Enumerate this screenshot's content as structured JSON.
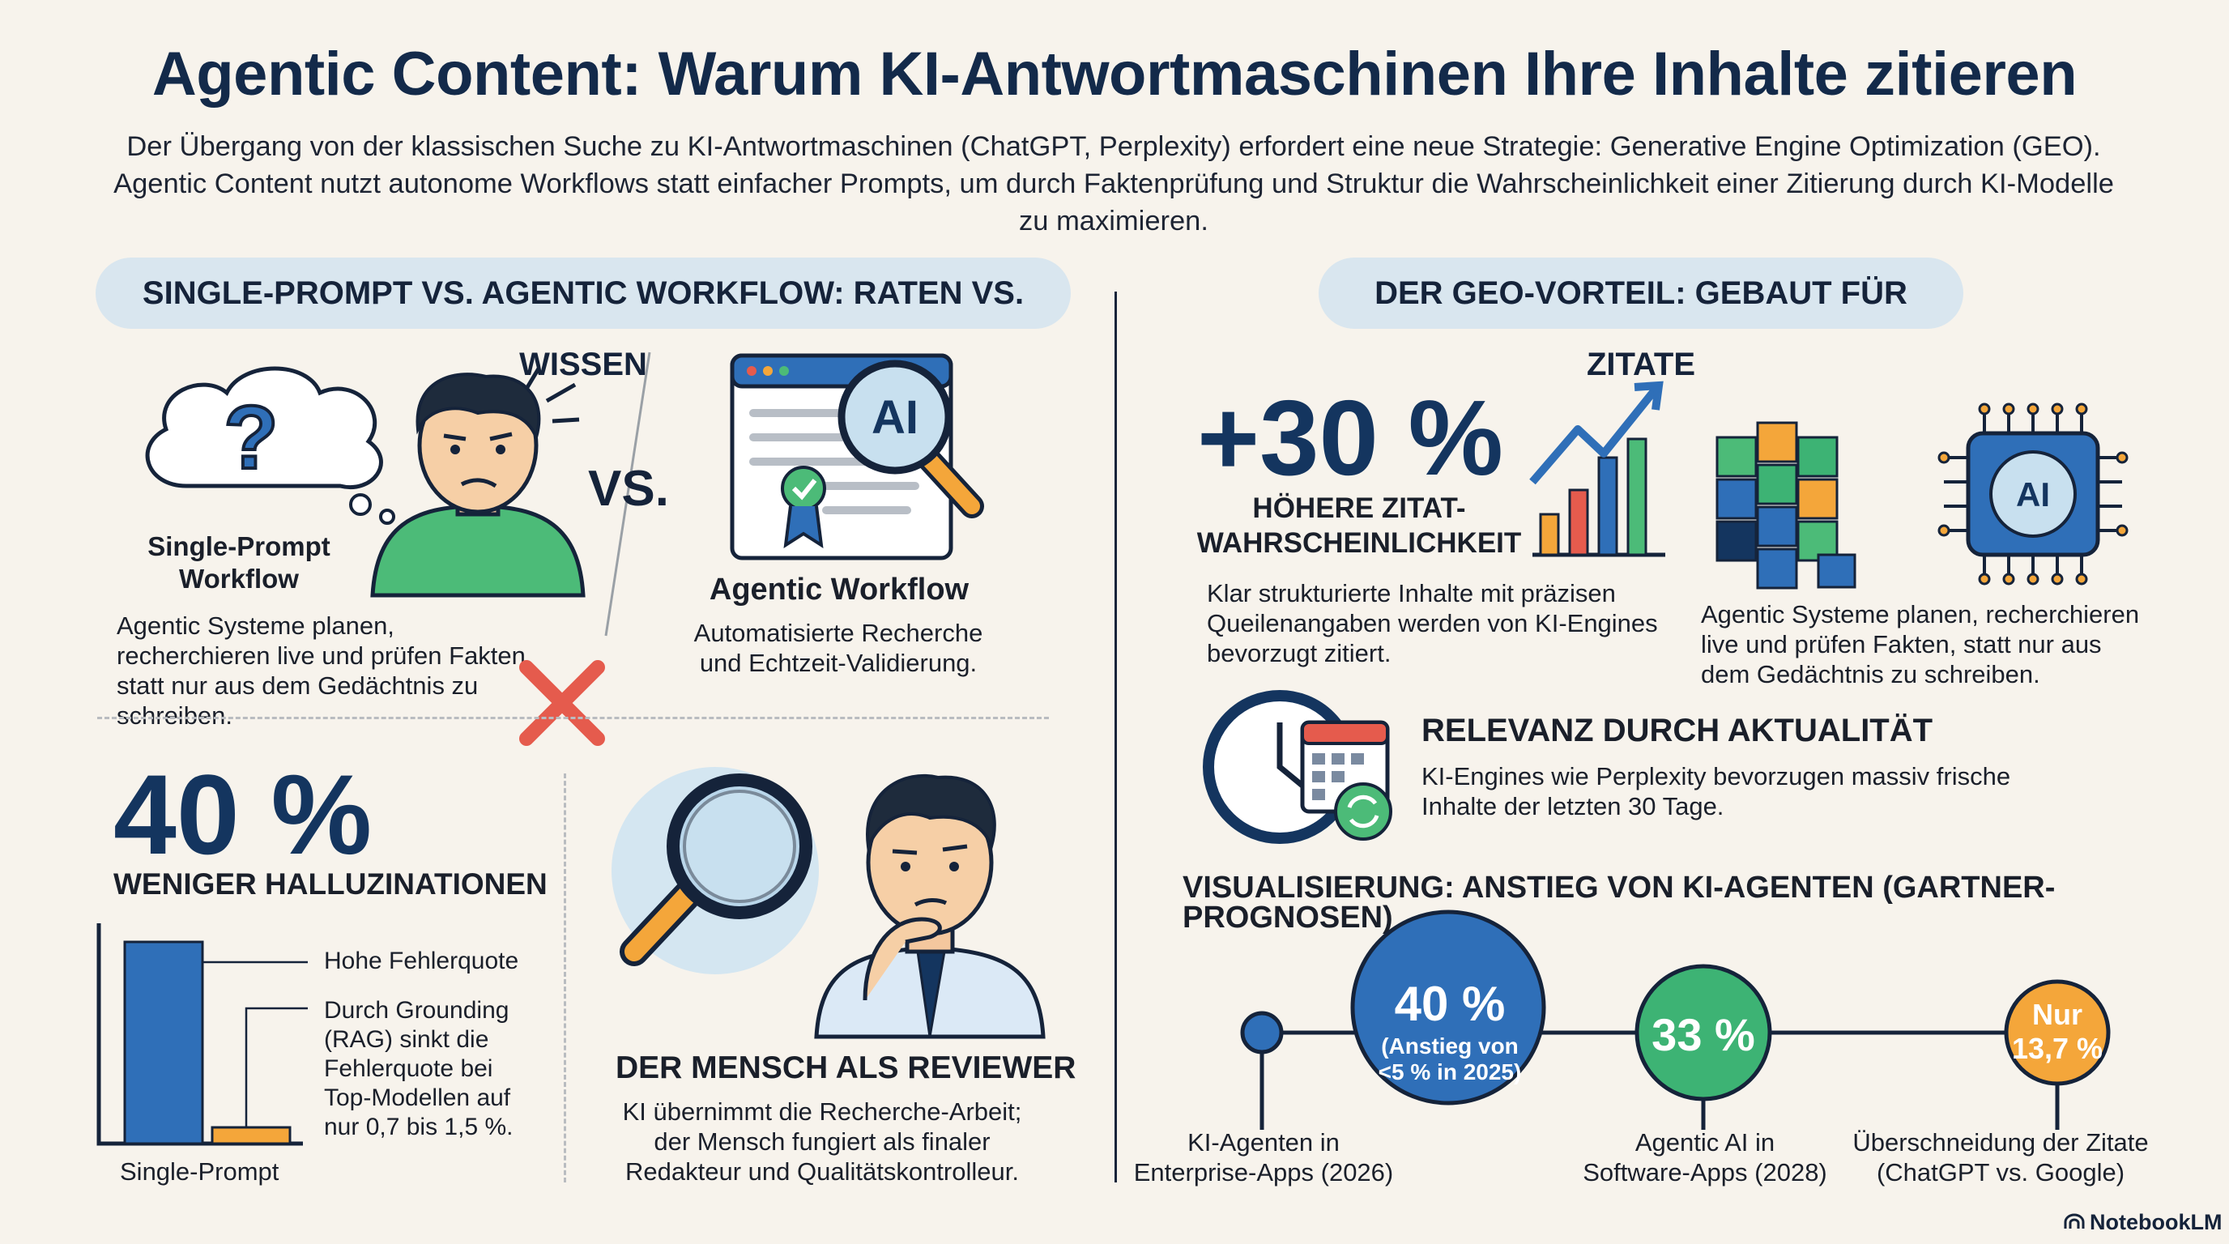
{
  "title": "Agentic Content: Warum KI-Antwortmaschinen Ihre Inhalte zitieren",
  "intro": "Der Übergang von der klassischen Suche zu KI-Antwortmaschinen (ChatGPT, Perplexity) erfordert eine neue Strategie: Generative Engine Optimization (GEO). Agentic Content nutzt autonome Workflows statt einfacher Prompts, um durch Faktenprüfung und Struktur die Wahrscheinlichkeit einer Zitierung durch KI-Modelle zu maximieren.",
  "left": {
    "heading": "SINGLE-PROMPT VS. AGENTIC WORKFLOW: RATEN VS. WISSEN",
    "single_prompt_label": "Single-Prompt\nWorkflow",
    "single_prompt_text": "Agentic Systeme planen, recherchieren live und prüfen Fakten, statt nur aus dem Gedächtnis zu schreiben.",
    "vs_label": "VS.",
    "question_mark": "?",
    "agentic_label": "Agentic Workflow",
    "agentic_text": "Automatisierte Recherche und Echtzeit-Validierung.",
    "ai_badge": "AI",
    "stat_value": "40 %",
    "stat_label": "WENIGER HALLUZINATIONEN",
    "bar_label_high": "Hohe Fehlerquote",
    "bar_label_low": "Durch Grounding (RAG) sinkt die Fehlerquote bei Top-Modellen auf nur 0,7 bis 1,5 %.",
    "bar_axis_label": "Single-Prompt",
    "reviewer_heading": "DER MENSCH ALS REVIEWER",
    "reviewer_text": "KI übernimmt die Recherche-Arbeit; der Mensch fungiert als finaler Redakteur und Qualitätskontrolleur."
  },
  "right": {
    "heading": "DER GEO-VORTEIL: GEBAUT FÜR ZITATE",
    "stat_value": "+30 %",
    "stat_label": "HÖHERE ZITAT-\nWAHRSCHEINLICHKEIT",
    "stat_text": "Klar strukturierte Inhalte mit präzisen Queilenangaben werden von KI-Engines bevorzugt zitiert.",
    "agentic_text": "Agentic Systeme planen, recherchieren live und prüfen Fakten, statt nur aus dem Gedächtnis zu schreiben.",
    "chip_badge": "AI",
    "relevance_heading": "RELEVANZ DURCH AKTUALITÄT",
    "relevance_text": "KI-Engines wie Perplexity bevorzugen massiv frische Inhalte der letzten 30 Tage.",
    "vis_heading": "VISUALISIERUNG: ANSTIEG VON KI-AGENTEN (GARTNER-PROGNOSEN)",
    "timeline": [
      {
        "value": "",
        "sub": "",
        "label": "KI-Agenten in\nEnterprise-Apps (2026)"
      },
      {
        "value": "40 %",
        "sub": "(Anstieg von\n<5 % in 2025)",
        "label": ""
      },
      {
        "value": "33 %",
        "sub": "",
        "label": "Agentic AI in\nSoftware-Apps (2028)"
      },
      {
        "value": "Nur\n13,7 %",
        "sub": "",
        "label": "Überschneidung der Zitate\n(ChatGPT vs. Google)"
      }
    ]
  },
  "footer": {
    "brand": "NotebookLM"
  },
  "colors": {
    "navy": "#14355f",
    "blue": "#2f6fb8",
    "orange": "#f4a63a",
    "green": "#3db374",
    "red": "#e55b4d",
    "pill": "#d9e6ef"
  }
}
